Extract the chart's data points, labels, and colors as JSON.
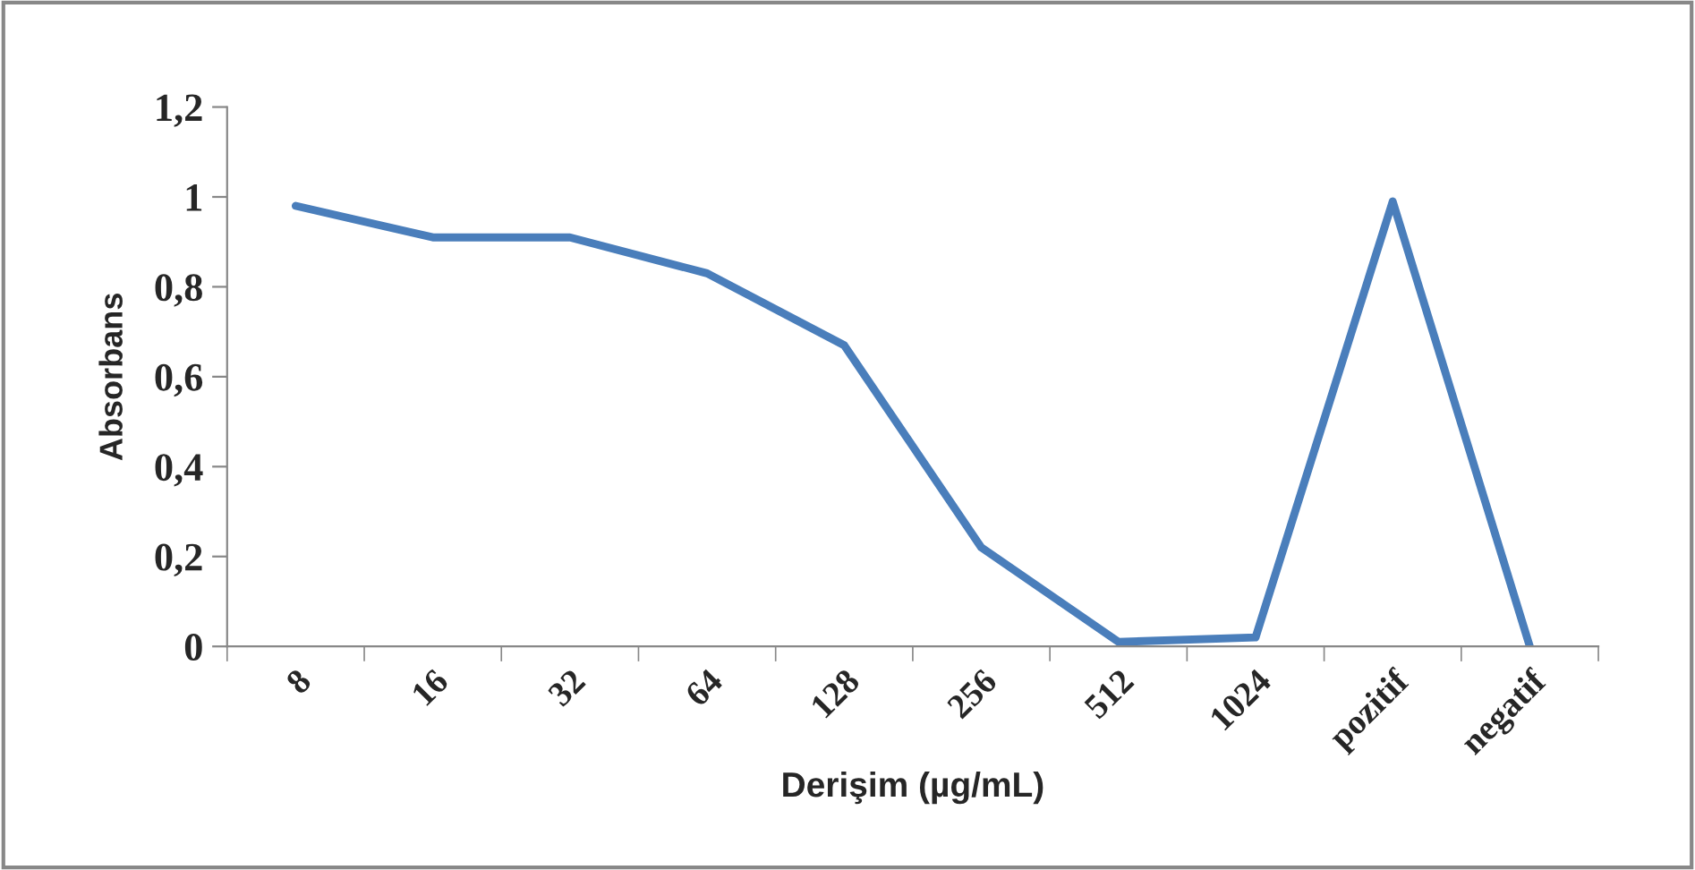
{
  "chart_data": {
    "type": "line",
    "xlabel": "Derişim (µg/mL)",
    "ylabel": "Absorbans",
    "categories": [
      "8",
      "16",
      "32",
      "64",
      "128",
      "256",
      "512",
      "1024",
      "pozitif",
      "negatif"
    ],
    "series": [
      {
        "color": "#4a7ebb",
        "values": [
          0.98,
          0.91,
          0.91,
          0.83,
          0.67,
          0.22,
          0.01,
          0.02,
          0.99,
          0
        ]
      }
    ],
    "ylim": [
      0,
      1.2
    ],
    "yticks": [
      {
        "value": 0,
        "label": "0"
      },
      {
        "value": 0.2,
        "label": "0,2"
      },
      {
        "value": 0.4,
        "label": "0,4"
      },
      {
        "value": 0.6,
        "label": "0,6"
      },
      {
        "value": 0.8,
        "label": "0,8"
      },
      {
        "value": 1,
        "label": "1"
      },
      {
        "value": 1.2,
        "label": "1,2"
      }
    ],
    "grid": false,
    "legend": false,
    "marker": "none",
    "line_style": "solid"
  }
}
